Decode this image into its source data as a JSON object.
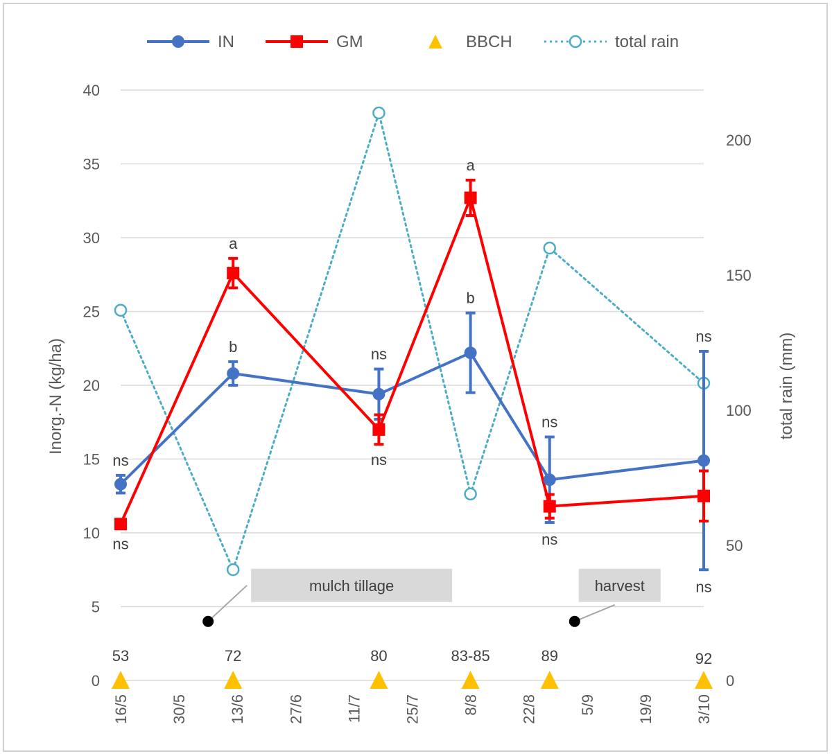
{
  "chart_data": {
    "type": "line",
    "title": "",
    "ylabel": "Inorg.-N (kg/ha)",
    "y2label": "total rain (mm)",
    "xlabel": "",
    "ylim": [
      0,
      40
    ],
    "y_ticks": [
      0,
      5,
      10,
      15,
      20,
      25,
      30,
      35,
      40
    ],
    "y2lim": [
      0,
      200
    ],
    "y2_ticks": [
      0,
      50,
      100,
      150,
      200
    ],
    "x_range": [
      "2023-05-16",
      "2023-10-03"
    ],
    "x_ticks": [
      {
        "date": "2023-05-16",
        "label": "16/5"
      },
      {
        "date": "2023-05-30",
        "label": "30/5"
      },
      {
        "date": "2023-06-13",
        "label": "13/6"
      },
      {
        "date": "2023-06-27",
        "label": "27/6"
      },
      {
        "date": "2023-07-11",
        "label": "11/7"
      },
      {
        "date": "2023-07-25",
        "label": "25/7"
      },
      {
        "date": "2023-08-08",
        "label": "8/8"
      },
      {
        "date": "2023-08-22",
        "label": "22/8"
      },
      {
        "date": "2023-09-05",
        "label": "5/9"
      },
      {
        "date": "2023-09-19",
        "label": "19/9"
      },
      {
        "date": "2023-10-03",
        "label": "3/10"
      }
    ],
    "grid": true,
    "legend_position": "top",
    "series": [
      {
        "name": "IN",
        "axis": "left",
        "color": "#4472C4",
        "marker": "circle",
        "x": [
          "2023-05-16",
          "2023-06-12",
          "2023-07-17",
          "2023-08-08",
          "2023-08-27",
          "2023-10-03"
        ],
        "y": [
          13.3,
          20.8,
          19.4,
          22.2,
          13.6,
          14.9
        ],
        "error": [
          0.6,
          0.8,
          1.7,
          2.7,
          2.9,
          7.4
        ],
        "labels": [
          "ns",
          "b",
          "ns",
          "b",
          "ns",
          "ns"
        ]
      },
      {
        "name": "GM",
        "axis": "left",
        "color": "#FF0000",
        "marker": "square",
        "x": [
          "2023-05-16",
          "2023-06-12",
          "2023-07-17",
          "2023-08-08",
          "2023-08-27",
          "2023-10-03"
        ],
        "y": [
          10.6,
          27.6,
          17.0,
          32.7,
          11.8,
          12.5
        ],
        "error": [
          0.3,
          1.0,
          1.0,
          1.2,
          0.8,
          1.7
        ],
        "labels": [
          "ns",
          "a",
          "ns",
          "a",
          "ns",
          "ns"
        ]
      },
      {
        "name": "BBCH",
        "axis": "left",
        "color": "#FFC000",
        "marker": "triangle",
        "x": [
          "2023-05-16",
          "2023-06-12",
          "2023-07-17",
          "2023-08-08",
          "2023-08-27",
          "2023-10-03"
        ],
        "y": [
          0,
          0,
          0,
          0,
          0,
          0
        ],
        "labels": [
          "53",
          "72",
          "80",
          "83-85",
          "89",
          "92"
        ]
      },
      {
        "name": "total rain",
        "axis": "right",
        "color": "#4BACC6",
        "marker": "open-circle",
        "x": [
          "2023-05-16",
          "2023-06-12",
          "2023-07-17",
          "2023-08-08",
          "2023-08-27",
          "2023-10-03"
        ],
        "y": [
          137,
          41,
          210,
          69,
          160,
          110
        ]
      }
    ],
    "annotations": [
      {
        "text": "mulch tillage",
        "date": "2023-06-06",
        "y": 4
      },
      {
        "text": "harvest",
        "date": "2023-09-02",
        "y": 4
      }
    ]
  }
}
